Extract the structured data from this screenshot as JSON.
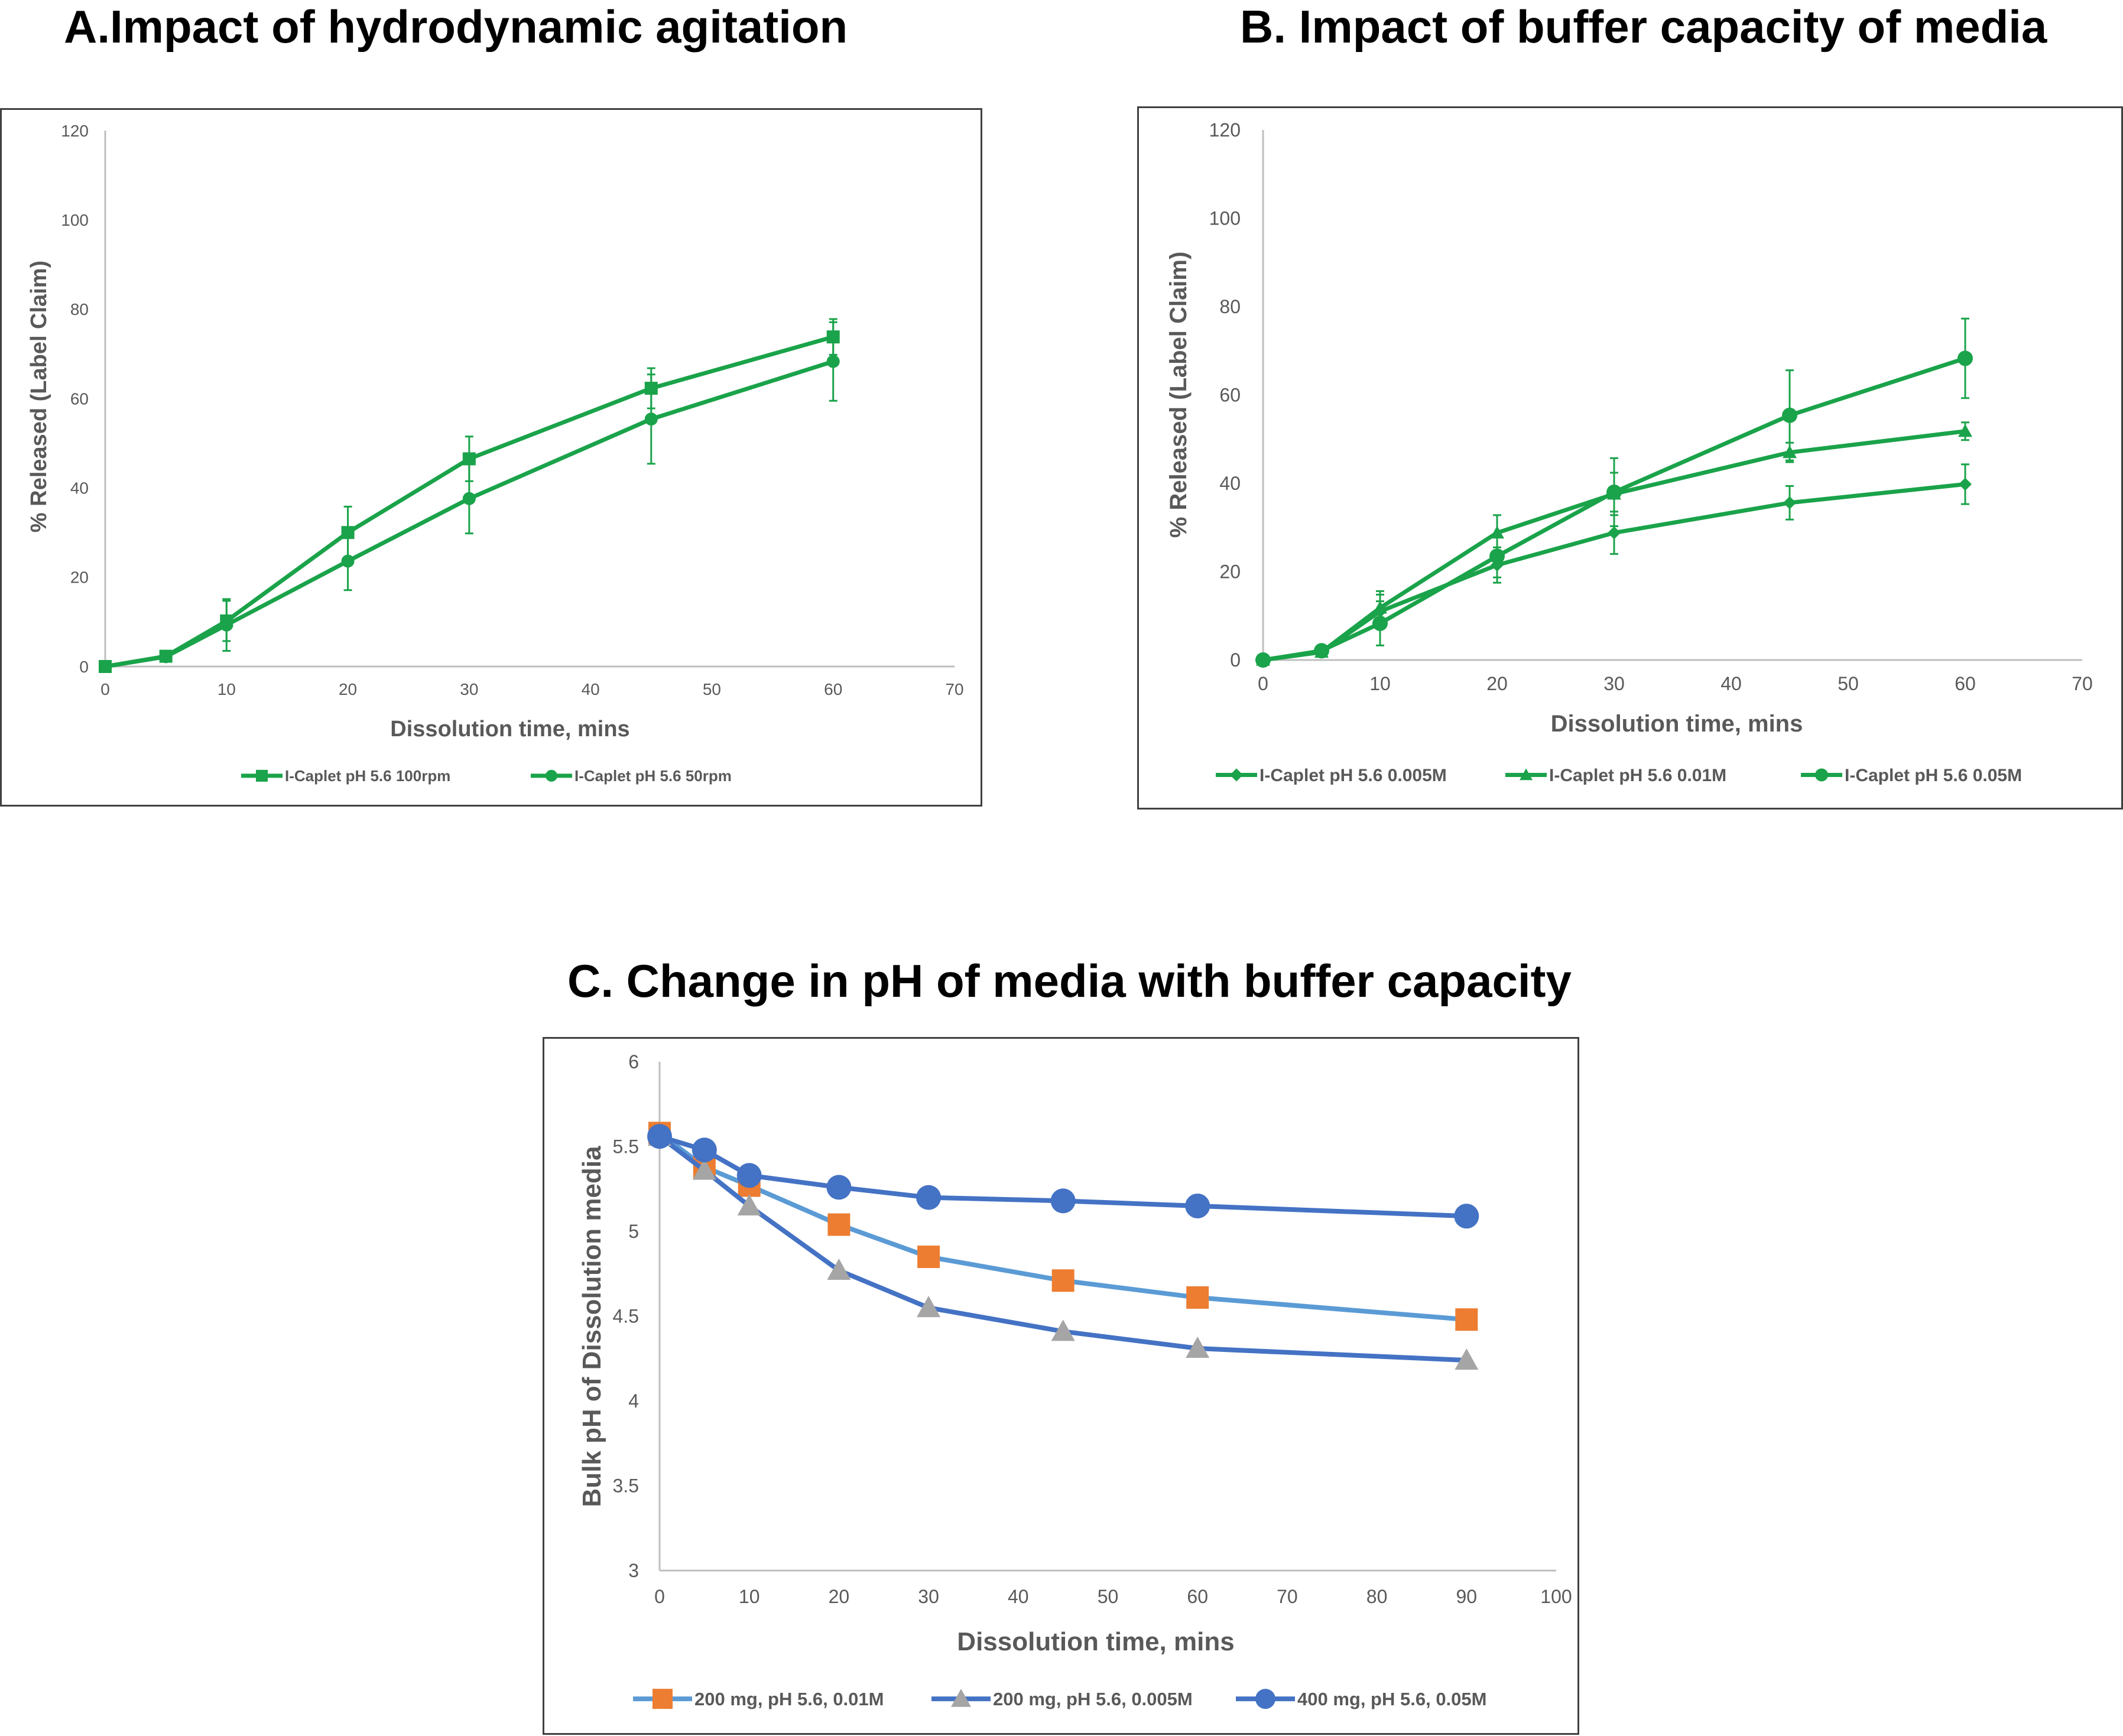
{
  "panels": {
    "a": {
      "title": "A.Impact of hydrodynamic agitation"
    },
    "b": {
      "title": "B. Impact of buffer capacity of media"
    },
    "c": {
      "title": "C. Change in pH of media with buffer capacity"
    }
  },
  "chart_data": [
    {
      "id": "a",
      "type": "line",
      "title": "A.Impact of hydrodynamic agitation",
      "xlabel": "Dissolution time, mins",
      "ylabel": "% Released (Label Claim)",
      "xlim": [
        0,
        70
      ],
      "ylim": [
        0,
        120
      ],
      "xticks": [
        0,
        10,
        20,
        30,
        40,
        50,
        60,
        70
      ],
      "yticks": [
        0,
        20,
        40,
        60,
        80,
        100,
        120
      ],
      "grid": false,
      "legend": "bottom",
      "colors": {
        "line": "#1aa34a",
        "axis": "#bfbfbf",
        "tick_text": "#595959",
        "label_text": "#595959"
      },
      "x": [
        0,
        5,
        10,
        20,
        30,
        45,
        60
      ],
      "series": [
        {
          "name": "I-Caplet pH 5.6 100rpm",
          "marker": "square",
          "values": [
            0,
            2.3,
            10.2,
            30.0,
            46.5,
            62.3,
            73.8
          ],
          "errors": [
            0,
            0.5,
            4.5,
            5.8,
            5.0,
            4.5,
            4.0
          ]
        },
        {
          "name": "I-Caplet pH 5.6 50rpm",
          "marker": "circle",
          "values": [
            0,
            2.2,
            9.3,
            23.6,
            37.6,
            55.4,
            68.3
          ],
          "errors": [
            0,
            0.5,
            5.8,
            6.5,
            7.8,
            10.0,
            8.8
          ]
        }
      ]
    },
    {
      "id": "b",
      "type": "line",
      "title": "B. Impact of buffer capacity of media",
      "xlabel": "Dissolution time, mins",
      "ylabel": "% Released (Label Claim)",
      "xlim": [
        0,
        70
      ],
      "ylim": [
        0,
        120
      ],
      "xticks": [
        0,
        10,
        20,
        30,
        40,
        50,
        60,
        70
      ],
      "yticks": [
        0,
        20,
        40,
        60,
        80,
        100,
        120
      ],
      "grid": false,
      "legend": "bottom",
      "colors": {
        "line": "#1aa34a",
        "axis": "#bfbfbf",
        "tick_text": "#595959",
        "label_text": "#595959"
      },
      "x": [
        0,
        5,
        10,
        20,
        30,
        45,
        60
      ],
      "series": [
        {
          "name": "I-Caplet pH 5.6 0.005M",
          "marker": "diamond",
          "values": [
            0,
            1.8,
            11.0,
            21.5,
            28.8,
            35.6,
            39.8
          ],
          "errors": [
            0,
            0.5,
            3.8,
            4.0,
            4.8,
            3.8,
            4.5
          ]
        },
        {
          "name": "I-Caplet pH 5.6 0.01M",
          "marker": "triangle",
          "values": [
            0,
            1.8,
            11.8,
            28.8,
            37.6,
            47.0,
            51.8
          ],
          "errors": [
            0,
            0.5,
            3.8,
            4.0,
            4.8,
            2.2,
            2.0
          ]
        },
        {
          "name": "I-Caplet pH 5.6 0.05M",
          "marker": "circle",
          "values": [
            0,
            2.1,
            8.3,
            23.5,
            38.0,
            55.4,
            68.3
          ],
          "errors": [
            0,
            0.5,
            5.0,
            4.8,
            7.7,
            10.2,
            9.0
          ]
        }
      ]
    },
    {
      "id": "c",
      "type": "line",
      "title": "C. Change in pH of media with buffer capacity",
      "xlabel": "Dissolution time, mins",
      "ylabel": "Bulk pH of  Dissolution media",
      "xlim": [
        0,
        100
      ],
      "ylim": [
        3,
        6
      ],
      "xticks": [
        0,
        10,
        20,
        30,
        40,
        50,
        60,
        70,
        80,
        90,
        100
      ],
      "yticks": [
        3,
        3.5,
        4,
        4.5,
        5,
        5.5,
        6
      ],
      "grid": false,
      "legend": "bottom",
      "colors": {
        "axis": "#bfbfbf",
        "tick_text": "#595959",
        "label_text": "#595959"
      },
      "x": [
        0,
        5,
        10,
        20,
        30,
        45,
        60,
        90
      ],
      "series": [
        {
          "name": "200 mg, pH 5.6, 0.01M",
          "marker": "square",
          "line_color": "#5b9bd5",
          "marker_color": "#ed7d31",
          "values": [
            5.58,
            5.38,
            5.27,
            5.04,
            4.85,
            4.71,
            4.61,
            4.48
          ]
        },
        {
          "name": "200 mg, pH 5.6, 0.005M",
          "marker": "triangle",
          "line_color": "#4472c4",
          "marker_color": "#a5a5a5",
          "values": [
            5.56,
            5.36,
            5.15,
            4.77,
            4.55,
            4.41,
            4.31,
            4.24
          ]
        },
        {
          "name": "400 mg, pH 5.6, 0.05M",
          "marker": "circle",
          "line_color": "#4472c4",
          "marker_color": "#4472c4",
          "values": [
            5.56,
            5.48,
            5.33,
            5.26,
            5.2,
            5.18,
            5.15,
            5.09
          ]
        }
      ]
    }
  ]
}
